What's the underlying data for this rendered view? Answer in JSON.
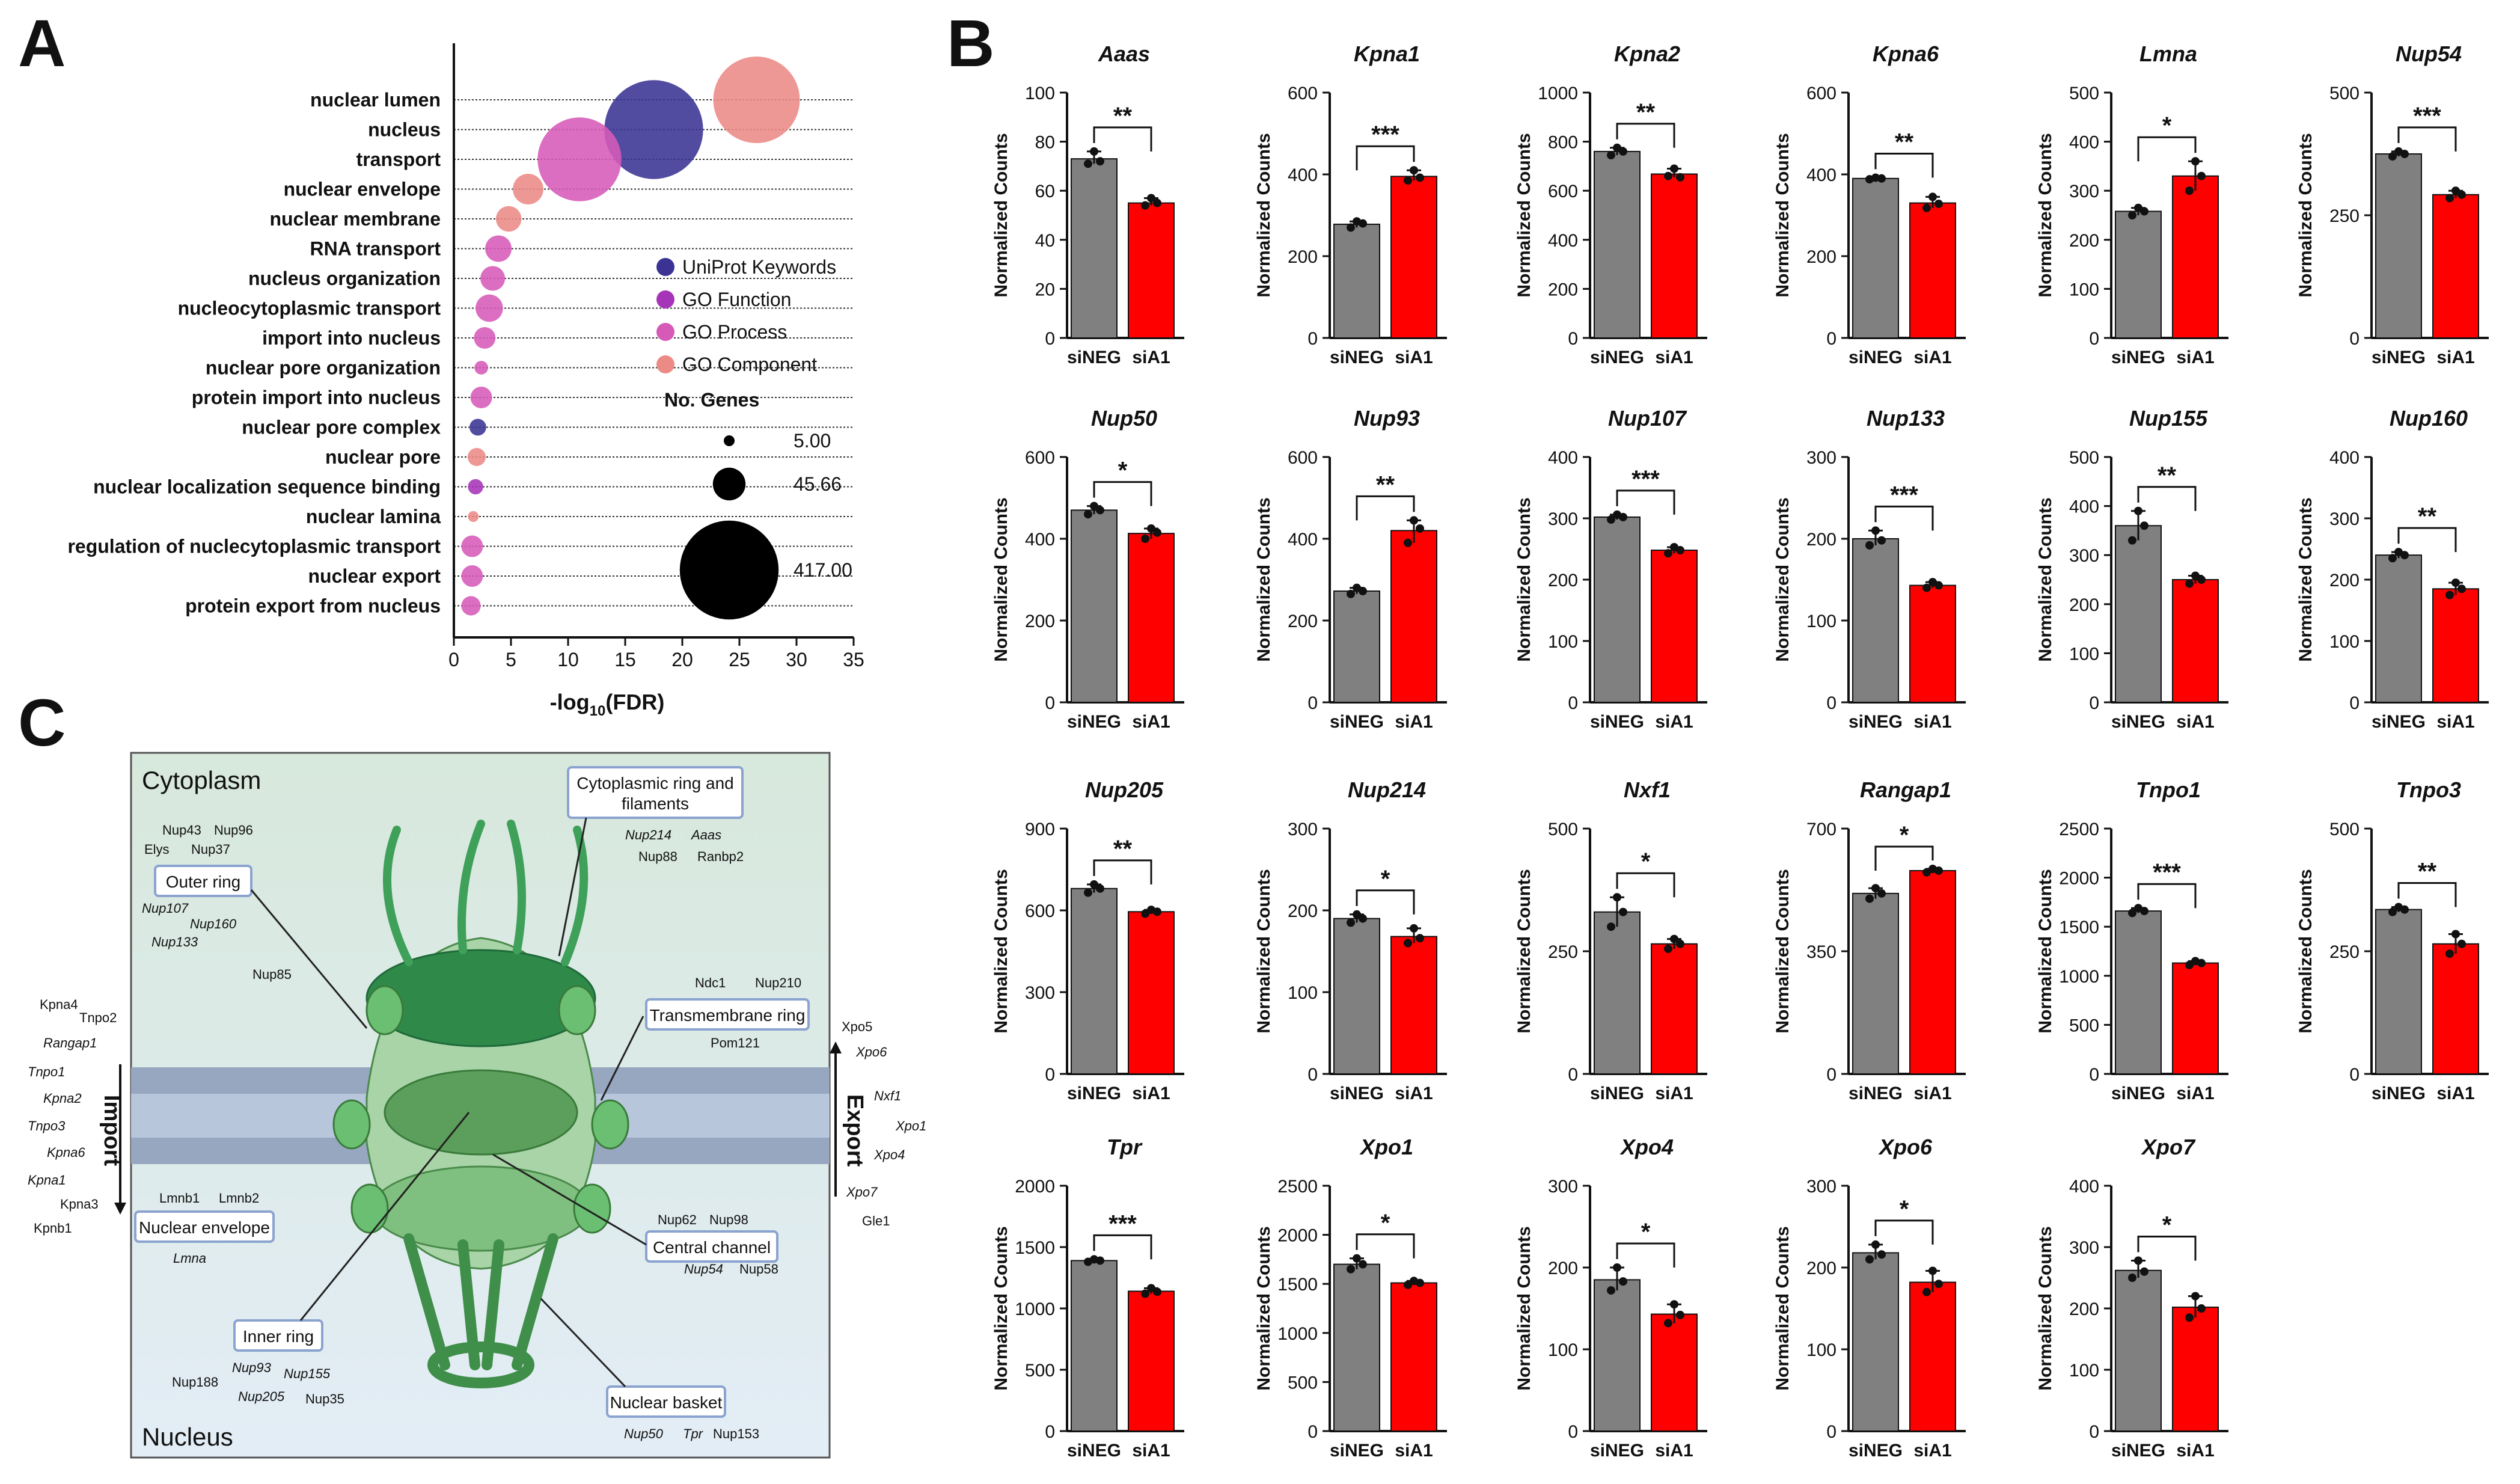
{
  "panel_labels": {
    "a": "A",
    "b": "B",
    "c": "C"
  },
  "colors": {
    "uniprot": "#3a3394",
    "go_function": "#a634b8",
    "go_process": "#d65ab8",
    "go_component": "#ec8a86",
    "control_bar": "#808080",
    "knockdown_bar": "#ff0000"
  },
  "panelA": {
    "legend": {
      "sources": [
        "UniProt Keywords",
        "GO Function",
        "GO Process",
        "GO Component"
      ],
      "size_title": "No. Genes",
      "size_labels": [
        "5.00",
        "45.66",
        "417.00"
      ]
    }
  },
  "panelC": {
    "compartments": {
      "cytoplasm": "Cytoplasm",
      "nucleus": "Nucleus"
    },
    "boxes": {
      "cyto_ring": [
        "Cytoplasmic ring and",
        "filaments"
      ],
      "outer_ring": "Outer ring",
      "transmembrane_ring": "Transmembrane ring",
      "nuclear_envelope": "Nuclear envelope",
      "central_channel": "Central channel",
      "inner_ring": "Inner ring",
      "nuclear_basket": "Nuclear basket"
    },
    "import_label": "Import",
    "export_label": "Export",
    "genes": {
      "cyto_ring": [
        [
          "Nup214",
          "Aaas"
        ],
        [
          "Nup88",
          "Ranbp2"
        ]
      ],
      "outer_ring_top": [
        [
          "Nup43",
          "Nup96"
        ],
        [
          "Elys",
          "Nup37"
        ]
      ],
      "outer_ring_italic": [
        "Nup107",
        "Nup160",
        "Nup133"
      ],
      "outer_ring_extra": "Nup85",
      "transmembrane": [
        [
          "Ndc1",
          "Nup210"
        ],
        [
          "Pom121"
        ]
      ],
      "import_genes": [
        "Kpna4",
        "Tnpo2",
        "Rangap1",
        "Tnpo1",
        "Kpna2",
        "Tnpo3",
        "Kpna6",
        "Kpna1",
        "Kpna3",
        "Kpnb1"
      ],
      "export_genes": [
        "Xpo5",
        "Xpo6",
        "Nxf1",
        "Xpo1",
        "Xpo4",
        "Xpo7",
        "Gle1"
      ],
      "nuclear_envelope": [
        [
          "Lmnb1",
          "Lmnb2"
        ],
        [
          "Lmna"
        ]
      ],
      "central_channel": [
        [
          "Nup62",
          "Nup98"
        ],
        [
          "Nup54",
          "Nup58"
        ]
      ],
      "inner_ring": [
        [
          "Nup93",
          "Nup155"
        ],
        [
          "Nup188",
          ""
        ],
        [
          "Nup205",
          "Nup35"
        ]
      ],
      "basket": [
        "Nup50",
        "Tpr",
        "Nup153"
      ]
    }
  },
  "chart_data": [
    {
      "type": "scatter",
      "panel": "A",
      "xlabel_prefix": "-log",
      "xlabel_sub": "10",
      "xlabel_suffix": "(FDR)",
      "xlim": [
        0,
        35
      ],
      "xticks": [
        0,
        5,
        10,
        15,
        20,
        25,
        30,
        35
      ],
      "categories": [
        "nuclear lumen",
        "nucleus",
        "transport",
        "nuclear envelope",
        "nuclear membrane",
        "RNA transport",
        "nucleus organization",
        "nucleocytoplasmic transport",
        "import into nucleus",
        "nuclear pore organization",
        "protein import into nucleus",
        "nuclear pore complex",
        "nuclear pore",
        "nuclear localization sequence binding",
        "nuclear lamina",
        "regulation of nuclecytoplasmic transport",
        "nuclear export",
        "protein export from nucleus"
      ],
      "points": [
        {
          "term": "nuclear lumen",
          "x": 26.5,
          "genes": 320,
          "source": "GO Component"
        },
        {
          "term": "nucleus",
          "x": 17.5,
          "genes": 417,
          "source": "UniProt Keywords"
        },
        {
          "term": "transport",
          "x": 11.0,
          "genes": 300,
          "source": "GO Process"
        },
        {
          "term": "nuclear envelope",
          "x": 6.5,
          "genes": 40,
          "source": "GO Component"
        },
        {
          "term": "nuclear membrane",
          "x": 4.8,
          "genes": 28,
          "source": "GO Component"
        },
        {
          "term": "RNA transport",
          "x": 3.9,
          "genes": 30,
          "source": "GO Process"
        },
        {
          "term": "nucleus organization",
          "x": 3.4,
          "genes": 26,
          "source": "GO Process"
        },
        {
          "term": "nucleocytoplasmic transport",
          "x": 3.1,
          "genes": 32,
          "source": "GO Process"
        },
        {
          "term": "import into nucleus",
          "x": 2.7,
          "genes": 20,
          "source": "GO Process"
        },
        {
          "term": "nuclear pore organization",
          "x": 2.4,
          "genes": 8,
          "source": "GO Process"
        },
        {
          "term": "protein import into nucleus",
          "x": 2.4,
          "genes": 20,
          "source": "GO Process"
        },
        {
          "term": "nuclear pore complex",
          "x": 2.1,
          "genes": 12,
          "source": "UniProt Keywords"
        },
        {
          "term": "nuclear pore",
          "x": 2.0,
          "genes": 14,
          "source": "GO Component"
        },
        {
          "term": "nuclear localization sequence binding",
          "x": 1.9,
          "genes": 10,
          "source": "GO Function"
        },
        {
          "term": "nuclear lamina",
          "x": 1.7,
          "genes": 5,
          "source": "GO Component"
        },
        {
          "term": "regulation of nuclecytoplasmic transport",
          "x": 1.6,
          "genes": 20,
          "source": "GO Process"
        },
        {
          "term": "nuclear export",
          "x": 1.6,
          "genes": 20,
          "source": "GO Process"
        },
        {
          "term": "protein export from nucleus",
          "x": 1.5,
          "genes": 16,
          "source": "GO Process"
        }
      ]
    },
    {
      "type": "bar",
      "panel": "B",
      "ylabel": "Normalized Counts",
      "categories": [
        "siNEG",
        "siA1"
      ],
      "charts": [
        {
          "gene": "Aaas",
          "ylim": [
            0,
            100
          ],
          "yticks": [
            0,
            20,
            40,
            60,
            80,
            100
          ],
          "values": [
            73,
            55
          ],
          "points": [
            [
              71,
              76,
              72
            ],
            [
              54,
              57,
              55
            ]
          ],
          "sig": "**"
        },
        {
          "gene": "Kpna1",
          "ylim": [
            0,
            600
          ],
          "yticks": [
            0,
            200,
            400,
            600
          ],
          "values": [
            278,
            395
          ],
          "points": [
            [
              270,
              285,
              280
            ],
            [
              385,
              410,
              392
            ]
          ],
          "sig": "***"
        },
        {
          "gene": "Kpna2",
          "ylim": [
            0,
            1000
          ],
          "yticks": [
            0,
            200,
            400,
            600,
            800,
            1000
          ],
          "values": [
            760,
            668
          ],
          "points": [
            [
              745,
              775,
              760
            ],
            [
              660,
              690,
              655
            ]
          ],
          "sig": "**"
        },
        {
          "gene": "Kpna6",
          "ylim": [
            0,
            600
          ],
          "yticks": [
            0,
            200,
            400,
            600
          ],
          "values": [
            390,
            330
          ],
          "points": [
            [
              388,
              392,
              390
            ],
            [
              318,
              345,
              328
            ]
          ],
          "sig": "**"
        },
        {
          "gene": "Lmna",
          "ylim": [
            0,
            500
          ],
          "yticks": [
            0,
            100,
            200,
            300,
            400,
            500
          ],
          "values": [
            258,
            330
          ],
          "points": [
            [
              250,
              265,
              258
            ],
            [
              300,
              360,
              330
            ]
          ],
          "sig": "*"
        },
        {
          "gene": "Nup54",
          "ylim": [
            0,
            500
          ],
          "yticks": [
            0,
            250,
            500
          ],
          "values": [
            375,
            292
          ],
          "points": [
            [
              370,
              380,
              375
            ],
            [
              285,
              300,
              292
            ]
          ],
          "sig": "***"
        },
        {
          "gene": "Nup50",
          "ylim": [
            0,
            600
          ],
          "yticks": [
            0,
            200,
            400,
            600
          ],
          "values": [
            470,
            413
          ],
          "points": [
            [
              460,
              480,
              470
            ],
            [
              400,
              425,
              415
            ]
          ],
          "sig": "*"
        },
        {
          "gene": "Nup93",
          "ylim": [
            0,
            600
          ],
          "yticks": [
            0,
            200,
            400,
            600
          ],
          "values": [
            272,
            420
          ],
          "points": [
            [
              265,
              280,
              272
            ],
            [
              390,
              445,
              425
            ]
          ],
          "sig": "**"
        },
        {
          "gene": "Nup107",
          "ylim": [
            0,
            400
          ],
          "yticks": [
            0,
            100,
            200,
            300,
            400
          ],
          "values": [
            302,
            248
          ],
          "points": [
            [
              298,
              306,
              302
            ],
            [
              243,
              253,
              248
            ]
          ],
          "sig": "***"
        },
        {
          "gene": "Nup133",
          "ylim": [
            0,
            300
          ],
          "yticks": [
            0,
            100,
            200,
            300
          ],
          "values": [
            200,
            143
          ],
          "points": [
            [
              192,
              210,
              198
            ],
            [
              140,
              147,
              143
            ]
          ],
          "sig": "***"
        },
        {
          "gene": "Nup155",
          "ylim": [
            0,
            500
          ],
          "yticks": [
            0,
            100,
            200,
            300,
            400,
            500
          ],
          "values": [
            360,
            250
          ],
          "points": [
            [
              330,
              390,
              360
            ],
            [
              242,
              258,
              250
            ]
          ],
          "sig": "**"
        },
        {
          "gene": "Nup160",
          "ylim": [
            0,
            400
          ],
          "yticks": [
            0,
            100,
            200,
            300,
            400
          ],
          "values": [
            240,
            185
          ],
          "points": [
            [
              235,
              245,
              240
            ],
            [
              175,
              195,
              185
            ]
          ],
          "sig": "**"
        },
        {
          "gene": "Nup205",
          "ylim": [
            0,
            900
          ],
          "yticks": [
            0,
            300,
            600,
            900
          ],
          "values": [
            680,
            595
          ],
          "points": [
            [
              665,
              695,
              680
            ],
            [
              588,
              602,
              595
            ]
          ],
          "sig": "**"
        },
        {
          "gene": "Nup214",
          "ylim": [
            0,
            300
          ],
          "yticks": [
            0,
            100,
            200,
            300
          ],
          "values": [
            190,
            168
          ],
          "points": [
            [
              185,
              195,
              190
            ],
            [
              160,
              178,
              166
            ]
          ],
          "sig": "*"
        },
        {
          "gene": "Nxf1",
          "ylim": [
            0,
            500
          ],
          "yticks": [
            0,
            250,
            500
          ],
          "values": [
            330,
            265
          ],
          "points": [
            [
              300,
              360,
              330
            ],
            [
              255,
              275,
              265
            ]
          ],
          "sig": "*"
        },
        {
          "gene": "Rangap1",
          "ylim": [
            0,
            700
          ],
          "yticks": [
            0,
            350,
            700
          ],
          "values": [
            515,
            580
          ],
          "points": [
            [
              500,
              530,
              515
            ],
            [
              575,
              585,
              580
            ]
          ],
          "sig": "*"
        },
        {
          "gene": "Tnpo1",
          "ylim": [
            0,
            2500
          ],
          "yticks": [
            0,
            500,
            1000,
            1500,
            2000,
            2500
          ],
          "values": [
            1660,
            1130
          ],
          "points": [
            [
              1640,
              1690,
              1660
            ],
            [
              1110,
              1150,
              1130
            ]
          ],
          "sig": "***"
        },
        {
          "gene": "Tnpo3",
          "ylim": [
            0,
            500
          ],
          "yticks": [
            0,
            250,
            500
          ],
          "values": [
            335,
            265
          ],
          "points": [
            [
              330,
              340,
              335
            ],
            [
              245,
              285,
              265
            ]
          ],
          "sig": "**"
        },
        {
          "gene": "Tpr",
          "ylim": [
            0,
            2000
          ],
          "yticks": [
            0,
            500,
            1000,
            1500,
            2000
          ],
          "values": [
            1390,
            1140
          ],
          "points": [
            [
              1380,
              1400,
              1390
            ],
            [
              1120,
              1165,
              1135
            ]
          ],
          "sig": "***"
        },
        {
          "gene": "Xpo1",
          "ylim": [
            0,
            2500
          ],
          "yticks": [
            0,
            500,
            1000,
            1500,
            2000,
            2500
          ],
          "values": [
            1700,
            1510
          ],
          "points": [
            [
              1650,
              1760,
              1700
            ],
            [
              1490,
              1530,
              1510
            ]
          ],
          "sig": "*"
        },
        {
          "gene": "Xpo4",
          "ylim": [
            0,
            300
          ],
          "yticks": [
            0,
            100,
            200,
            300
          ],
          "values": [
            185,
            143
          ],
          "points": [
            [
              172,
              200,
              183
            ],
            [
              132,
              155,
              142
            ]
          ],
          "sig": "*"
        },
        {
          "gene": "Xpo6",
          "ylim": [
            0,
            300
          ],
          "yticks": [
            0,
            100,
            200,
            300
          ],
          "values": [
            218,
            182
          ],
          "points": [
            [
              210,
              228,
              216
            ],
            [
              170,
              196,
              180
            ]
          ],
          "sig": "*"
        },
        {
          "gene": "Xpo7",
          "ylim": [
            0,
            400
          ],
          "yticks": [
            0,
            100,
            200,
            300,
            400
          ],
          "values": [
            262,
            202
          ],
          "points": [
            [
              250,
              278,
              260
            ],
            [
              185,
              220,
              200
            ]
          ],
          "sig": "*"
        }
      ]
    }
  ]
}
